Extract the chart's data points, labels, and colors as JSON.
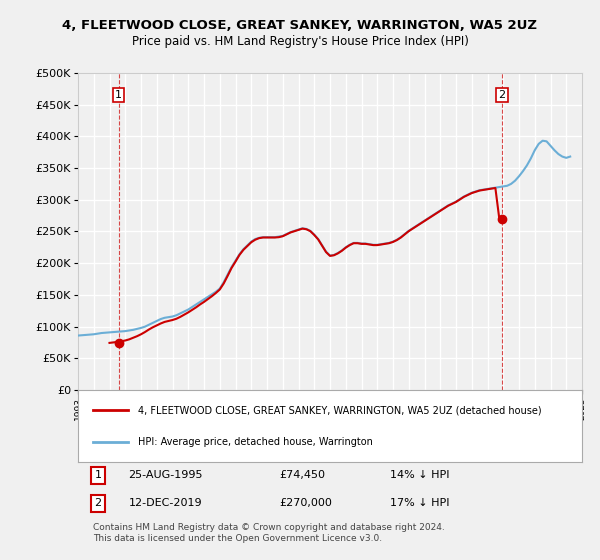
{
  "title": "4, FLEETWOOD CLOSE, GREAT SANKEY, WARRINGTON, WA5 2UZ",
  "subtitle": "Price paid vs. HM Land Registry's House Price Index (HPI)",
  "ylabel_ticks": [
    "£0",
    "£50K",
    "£100K",
    "£150K",
    "£200K",
    "£250K",
    "£300K",
    "£350K",
    "£400K",
    "£450K",
    "£500K"
  ],
  "ylim": [
    0,
    500000
  ],
  "sale1_date": "1995-08-25",
  "sale1_price": 74450,
  "sale1_label": "1",
  "sale2_date": "2019-12-12",
  "sale2_price": 270000,
  "sale2_label": "2",
  "legend_red": "4, FLEETWOOD CLOSE, GREAT SANKEY, WARRINGTON, WA5 2UZ (detached house)",
  "legend_blue": "HPI: Average price, detached house, Warrington",
  "annotation1": "25-AUG-1995          £74,450          14% ↓ HPI",
  "annotation2": "12-DEC-2019          £270,000          17% ↓ HPI",
  "footer": "Contains HM Land Registry data © Crown copyright and database right 2024.\nThis data is licensed under the Open Government Licence v3.0.",
  "hpi_line_color": "#6baed6",
  "sale_line_color": "#cc0000",
  "background_color": "#f0f0f0",
  "plot_bg_color": "#f0f0f0",
  "grid_color": "#ffffff",
  "hpi_data": {
    "dates": [
      1993.0,
      1993.25,
      1993.5,
      1993.75,
      1994.0,
      1994.25,
      1994.5,
      1994.75,
      1995.0,
      1995.25,
      1995.5,
      1995.75,
      1996.0,
      1996.25,
      1996.5,
      1996.75,
      1997.0,
      1997.25,
      1997.5,
      1997.75,
      1998.0,
      1998.25,
      1998.5,
      1998.75,
      1999.0,
      1999.25,
      1999.5,
      1999.75,
      2000.0,
      2000.25,
      2000.5,
      2000.75,
      2001.0,
      2001.25,
      2001.5,
      2001.75,
      2002.0,
      2002.25,
      2002.5,
      2002.75,
      2003.0,
      2003.25,
      2003.5,
      2003.75,
      2004.0,
      2004.25,
      2004.5,
      2004.75,
      2005.0,
      2005.25,
      2005.5,
      2005.75,
      2006.0,
      2006.25,
      2006.5,
      2006.75,
      2007.0,
      2007.25,
      2007.5,
      2007.75,
      2008.0,
      2008.25,
      2008.5,
      2008.75,
      2009.0,
      2009.25,
      2009.5,
      2009.75,
      2010.0,
      2010.25,
      2010.5,
      2010.75,
      2011.0,
      2011.25,
      2011.5,
      2011.75,
      2012.0,
      2012.25,
      2012.5,
      2012.75,
      2013.0,
      2013.25,
      2013.5,
      2013.75,
      2014.0,
      2014.25,
      2014.5,
      2014.75,
      2015.0,
      2015.25,
      2015.5,
      2015.75,
      2016.0,
      2016.25,
      2016.5,
      2016.75,
      2017.0,
      2017.25,
      2017.5,
      2017.75,
      2018.0,
      2018.25,
      2018.5,
      2018.75,
      2019.0,
      2019.25,
      2019.5,
      2019.75,
      2020.0,
      2020.25,
      2020.5,
      2020.75,
      2021.0,
      2021.25,
      2021.5,
      2021.75,
      2022.0,
      2022.25,
      2022.5,
      2022.75,
      2023.0,
      2023.25,
      2023.5,
      2023.75,
      2024.0,
      2024.25
    ],
    "values": [
      86000,
      86500,
      87000,
      87500,
      88000,
      89000,
      90000,
      90500,
      91000,
      91500,
      92000,
      92500,
      93000,
      94000,
      95000,
      96500,
      98000,
      100000,
      103000,
      106000,
      109000,
      112000,
      114000,
      115000,
      116000,
      118000,
      121000,
      124000,
      127000,
      131000,
      135000,
      139000,
      143000,
      147000,
      151000,
      155000,
      160000,
      170000,
      182000,
      194000,
      204000,
      214000,
      222000,
      228000,
      234000,
      238000,
      240000,
      241000,
      241000,
      241000,
      241000,
      242000,
      243000,
      246000,
      249000,
      251000,
      253000,
      255000,
      254000,
      251000,
      245000,
      238000,
      228000,
      218000,
      212000,
      213000,
      216000,
      220000,
      225000,
      229000,
      232000,
      232000,
      231000,
      231000,
      230000,
      229000,
      229000,
      230000,
      231000,
      232000,
      234000,
      237000,
      241000,
      246000,
      251000,
      255000,
      259000,
      263000,
      267000,
      271000,
      275000,
      279000,
      283000,
      287000,
      291000,
      294000,
      297000,
      301000,
      305000,
      308000,
      311000,
      313000,
      315000,
      316000,
      317000,
      318000,
      319000,
      320000,
      321000,
      322000,
      325000,
      330000,
      337000,
      345000,
      354000,
      365000,
      378000,
      388000,
      393000,
      392000,
      385000,
      378000,
      372000,
      368000,
      366000,
      368000
    ]
  },
  "sale_hpi_data": {
    "dates": [
      1995.0,
      1995.25,
      1995.5,
      1995.75,
      1996.0,
      1996.25,
      1996.5,
      1996.75,
      1997.0,
      1997.25,
      1997.5,
      1997.75,
      1998.0,
      1998.25,
      1998.5,
      1998.75,
      1999.0,
      1999.25,
      1999.5,
      1999.75,
      2000.0,
      2000.25,
      2000.5,
      2000.75,
      2001.0,
      2001.25,
      2001.5,
      2001.75,
      2002.0,
      2002.25,
      2002.5,
      2002.75,
      2003.0,
      2003.25,
      2003.5,
      2003.75,
      2004.0,
      2004.25,
      2004.5,
      2004.75,
      2005.0,
      2005.25,
      2005.5,
      2005.75,
      2006.0,
      2006.25,
      2006.5,
      2006.75,
      2007.0,
      2007.25,
      2007.5,
      2007.75,
      2008.0,
      2008.25,
      2008.5,
      2008.75,
      2009.0,
      2009.25,
      2009.5,
      2009.75,
      2010.0,
      2010.25,
      2010.5,
      2010.75,
      2011.0,
      2011.25,
      2011.5,
      2011.75,
      2012.0,
      2012.25,
      2012.5,
      2012.75,
      2013.0,
      2013.25,
      2013.5,
      2013.75,
      2014.0,
      2014.25,
      2014.5,
      2014.75,
      2015.0,
      2015.25,
      2015.5,
      2015.75,
      2016.0,
      2016.25,
      2016.5,
      2016.75,
      2017.0,
      2017.25,
      2017.5,
      2017.75,
      2018.0,
      2018.25,
      2018.5,
      2018.75,
      2019.0,
      2019.25,
      2019.5,
      2019.75
    ],
    "values": [
      74450,
      75200,
      76000,
      77000,
      78200,
      80000,
      82500,
      85000,
      88000,
      91500,
      95500,
      99000,
      102000,
      105000,
      107500,
      109000,
      110500,
      112500,
      115500,
      119000,
      122500,
      126500,
      130500,
      135000,
      139000,
      143500,
      148000,
      153000,
      158500,
      168000,
      180000,
      192500,
      202500,
      213000,
      221000,
      227000,
      233000,
      237000,
      239500,
      240500,
      240500,
      240500,
      240500,
      241000,
      242500,
      245500,
      248500,
      250500,
      252500,
      254500,
      253500,
      250500,
      244500,
      237500,
      227500,
      217500,
      211500,
      212500,
      215500,
      219500,
      224500,
      228500,
      231500,
      231500,
      230500,
      230500,
      229500,
      228500,
      228500,
      229500,
      230500,
      231500,
      233500,
      236500,
      240500,
      245500,
      250500,
      254500,
      258500,
      262500,
      266500,
      270500,
      274500,
      278500,
      282500,
      286500,
      290500,
      293500,
      296500,
      300500,
      304500,
      307500,
      310500,
      312500,
      314500,
      315500,
      316500,
      317500,
      318500,
      270000
    ]
  }
}
